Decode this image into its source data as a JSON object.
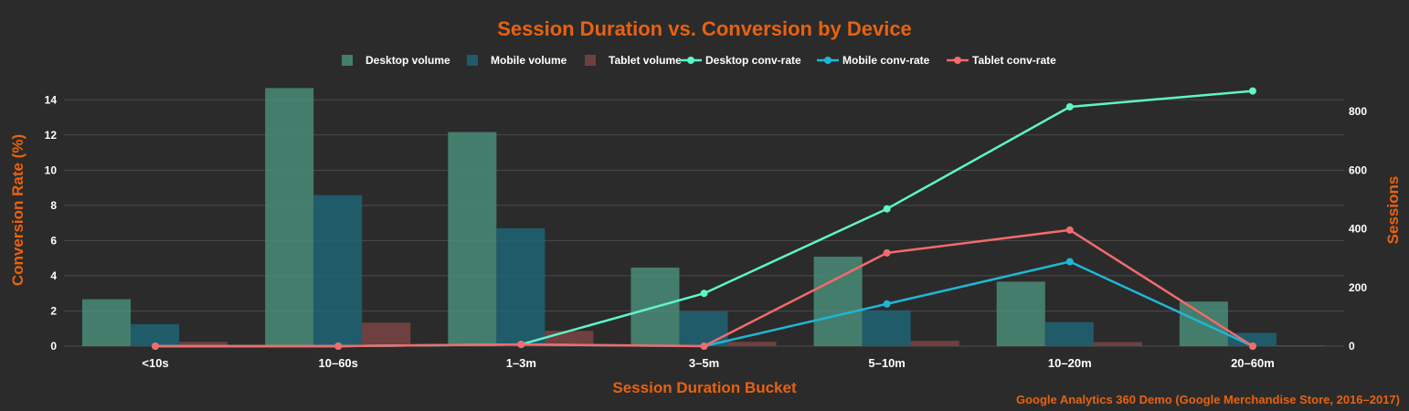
{
  "chart_data": {
    "type": "bar+line",
    "title": "Session Duration vs. Conversion by Device",
    "xlabel": "Session Duration Bucket",
    "ylabel_left": "Conversion Rate (%)",
    "ylabel_right": "Sessions",
    "source": "Google Analytics 360 Demo (Google Merchandise Store, 2016–2017)",
    "categories": [
      "<10s",
      "10–60s",
      "1–3m",
      "3–5m",
      "5–10m",
      "10–20m",
      "20–60m"
    ],
    "ylim_left": [
      0,
      15
    ],
    "ylim_right": [
      0,
      900
    ],
    "yticks_left": [
      0,
      2,
      4,
      6,
      8,
      10,
      12,
      14
    ],
    "yticks_right": [
      0,
      200,
      400,
      600,
      800
    ],
    "grid": true,
    "legend_position": "top-center",
    "bar_series": [
      {
        "name": "Desktop volume",
        "color": "#4a8c78",
        "values": [
          160,
          880,
          730,
          268,
          305,
          220,
          152
        ]
      },
      {
        "name": "Mobile volume",
        "color": "#1e6475",
        "values": [
          75,
          515,
          402,
          118,
          122,
          82,
          45
        ]
      },
      {
        "name": "Tablet volume",
        "color": "#7a4444",
        "values": [
          15,
          80,
          52,
          15,
          18,
          14,
          3
        ]
      }
    ],
    "line_series": [
      {
        "name": "Desktop conv-rate",
        "color": "#5ff5c8",
        "values": [
          0,
          0,
          0.1,
          3.0,
          7.8,
          13.6,
          14.5
        ]
      },
      {
        "name": "Mobile conv-rate",
        "color": "#1fb6d6",
        "values": [
          0,
          0,
          0.1,
          0,
          2.4,
          4.8,
          0
        ]
      },
      {
        "name": "Tablet conv-rate",
        "color": "#f26b6b",
        "values": [
          0,
          0,
          0.1,
          0,
          5.3,
          6.6,
          0
        ]
      }
    ]
  }
}
